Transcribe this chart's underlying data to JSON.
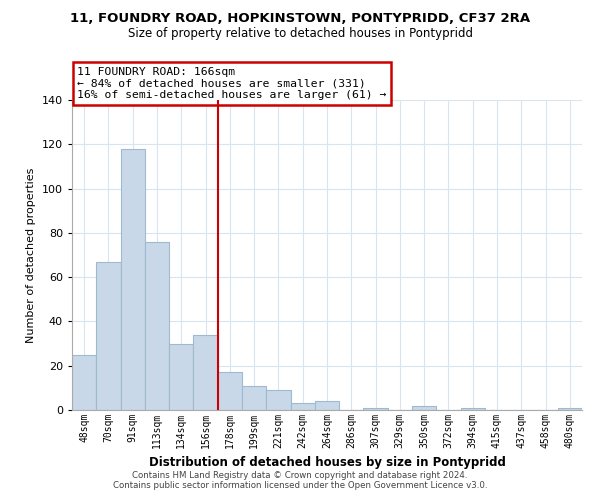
{
  "title1": "11, FOUNDRY ROAD, HOPKINSTOWN, PONTYPRIDD, CF37 2RA",
  "title2": "Size of property relative to detached houses in Pontypridd",
  "xlabel": "Distribution of detached houses by size in Pontypridd",
  "ylabel": "Number of detached properties",
  "bar_labels": [
    "48sqm",
    "70sqm",
    "91sqm",
    "113sqm",
    "134sqm",
    "156sqm",
    "178sqm",
    "199sqm",
    "221sqm",
    "242sqm",
    "264sqm",
    "286sqm",
    "307sqm",
    "329sqm",
    "350sqm",
    "372sqm",
    "394sqm",
    "415sqm",
    "437sqm",
    "458sqm",
    "480sqm"
  ],
  "bar_values": [
    25,
    67,
    118,
    76,
    30,
    34,
    17,
    11,
    9,
    3,
    4,
    0,
    1,
    0,
    2,
    0,
    1,
    0,
    0,
    0,
    1
  ],
  "bar_color": "#c8d8e8",
  "bar_edge_color": "#a0b8d0",
  "vline_x": 6.0,
  "vline_color": "#cc0000",
  "annotation_text": "11 FOUNDRY ROAD: 166sqm\n← 84% of detached houses are smaller (331)\n16% of semi-detached houses are larger (61) →",
  "annotation_box_color": "#ffffff",
  "annotation_box_edge": "#cc0000",
  "ylim": [
    0,
    140
  ],
  "yticks": [
    0,
    20,
    40,
    60,
    80,
    100,
    120,
    140
  ],
  "footer": "Contains HM Land Registry data © Crown copyright and database right 2024.\nContains public sector information licensed under the Open Government Licence v3.0.",
  "bg_color": "#ffffff",
  "grid_color": "#d8e4f0"
}
